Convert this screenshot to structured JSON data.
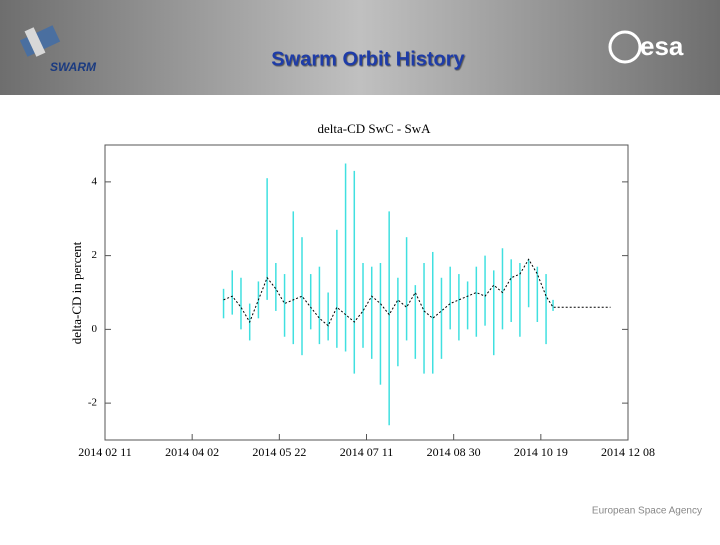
{
  "header": {
    "logo": "SWARM",
    "title": "Swarm Orbit History",
    "agency_logo": "esa"
  },
  "footer": "European Space Agency",
  "chart_data": {
    "type": "errorline",
    "title": "delta-CD SwC - SwA",
    "y_label": "delta-CD in percent",
    "line_color": "#000000",
    "error_color": "#40e0e0",
    "x": [
      "2014-04-20",
      "2014-04-25",
      "2014-04-30",
      "2014-05-05",
      "2014-05-10",
      "2014-05-15",
      "2014-05-20",
      "2014-05-25",
      "2014-05-30",
      "2014-06-04",
      "2014-06-09",
      "2014-06-14",
      "2014-06-19",
      "2014-06-24",
      "2014-06-29",
      "2014-07-04",
      "2014-07-09",
      "2014-07-14",
      "2014-07-19",
      "2014-07-24",
      "2014-07-29",
      "2014-08-03",
      "2014-08-08",
      "2014-08-13",
      "2014-08-18",
      "2014-08-23",
      "2014-08-28",
      "2014-09-02",
      "2014-09-07",
      "2014-09-12",
      "2014-09-17",
      "2014-09-22",
      "2014-09-27",
      "2014-10-02",
      "2014-10-07",
      "2014-10-12",
      "2014-10-17",
      "2014-10-22",
      "2014-10-26",
      "2014-11-01",
      "2014-11-28"
    ],
    "values": [
      0.8,
      0.9,
      0.6,
      0.2,
      0.8,
      1.4,
      1.1,
      0.7,
      0.8,
      0.9,
      0.6,
      0.3,
      0.1,
      0.6,
      0.4,
      0.2,
      0.5,
      0.9,
      0.7,
      0.4,
      0.8,
      0.6,
      1.0,
      0.5,
      0.3,
      0.5,
      0.7,
      0.8,
      0.9,
      1.0,
      0.9,
      1.2,
      1.0,
      1.4,
      1.5,
      1.9,
      1.5,
      0.9,
      0.6,
      0.6,
      0.6
    ],
    "error_low": [
      0.3,
      0.4,
      0.0,
      -0.3,
      0.3,
      0.8,
      0.5,
      -0.2,
      -0.4,
      -0.7,
      0.0,
      -0.4,
      -0.3,
      -0.5,
      -0.6,
      -1.2,
      -0.5,
      -0.8,
      -1.5,
      -2.6,
      -1.0,
      -0.3,
      -0.8,
      -1.2,
      -1.2,
      -0.8,
      0.0,
      -0.3,
      0.0,
      -0.2,
      0.1,
      -0.7,
      0.0,
      0.2,
      -0.2,
      0.6,
      0.2,
      -0.4,
      0.5,
      null,
      null
    ],
    "error_high": [
      1.1,
      1.6,
      1.4,
      0.7,
      1.3,
      4.1,
      1.8,
      1.5,
      3.2,
      2.5,
      1.5,
      1.7,
      1.0,
      2.7,
      4.5,
      4.3,
      1.8,
      1.7,
      1.8,
      3.2,
      1.4,
      2.5,
      1.2,
      1.8,
      2.1,
      1.4,
      1.7,
      1.5,
      1.3,
      1.7,
      2.0,
      1.6,
      2.2,
      1.9,
      1.8,
      1.9,
      1.7,
      1.5,
      0.8,
      null,
      null
    ],
    "xlim": [
      "2014-02-11",
      "2014-12-08"
    ],
    "xticks": [
      {
        "value": "2014-02-11",
        "label": "2014 02 11"
      },
      {
        "value": "2014-04-02",
        "label": "2014 04 02"
      },
      {
        "value": "2014-05-22",
        "label": "2014 05 22"
      },
      {
        "value": "2014-07-11",
        "label": "2014 07 11"
      },
      {
        "value": "2014-08-30",
        "label": "2014 08 30"
      },
      {
        "value": "2014-10-19",
        "label": "2014 10 19"
      },
      {
        "value": "2014-12-08",
        "label": "2014 12 08"
      }
    ],
    "ylim": [
      -3,
      5
    ],
    "yticks": [
      -2,
      0,
      2,
      4
    ]
  }
}
